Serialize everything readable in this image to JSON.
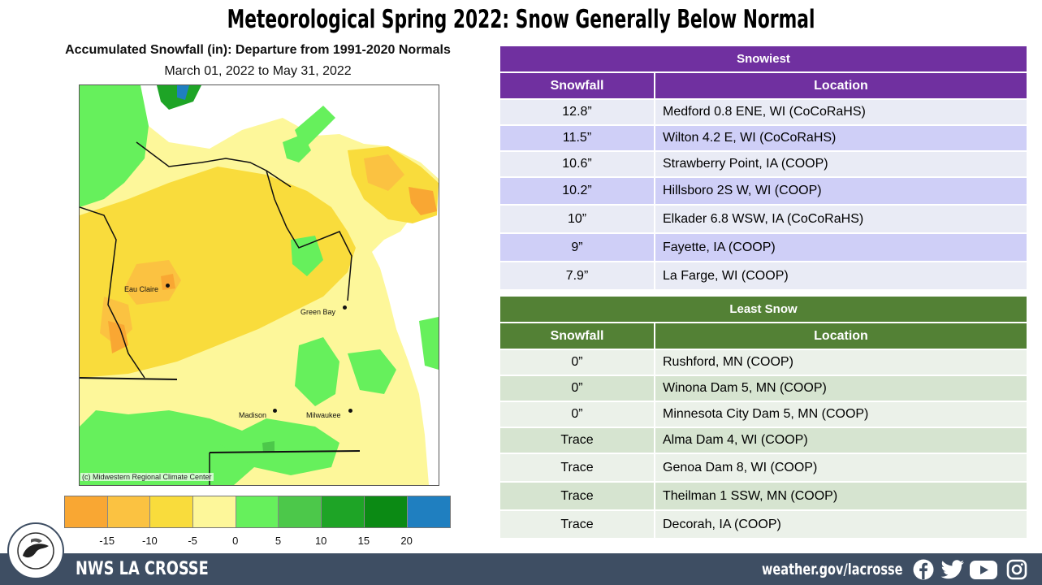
{
  "slide_title": "Meteorological Spring 2022:  Snow Generally Below Normal",
  "map": {
    "title": "Accumulated Snowfall (in): Departure from 1991-2020 Normals",
    "subtitle": "March 01, 2022 to May 31, 2022",
    "credit": "(c) Midwestern Regional Climate Center",
    "cities": [
      {
        "name": "Eau Claire"
      },
      {
        "name": "Green Bay"
      },
      {
        "name": "Madison"
      },
      {
        "name": "Milwaukee"
      }
    ]
  },
  "legend": {
    "colors": [
      "#f9a733",
      "#fbc241",
      "#f9dc3c",
      "#fdf79a",
      "#66f05c",
      "#4cc84a",
      "#1ea426",
      "#0b8a14",
      "#1f7fc0"
    ],
    "labels": [
      "-15",
      "-10",
      "-5",
      "0",
      "5",
      "10",
      "15",
      "20"
    ]
  },
  "snowiest": {
    "title": "Snowiest",
    "col_snowfall": "Snowfall",
    "col_location": "Location",
    "header_color": "#7030a0",
    "rows": [
      {
        "snowfall": "12.8”",
        "location": "Medford 0.8 ENE, WI (CoCoRaHS)"
      },
      {
        "snowfall": "11.5”",
        "location": "Wilton 4.2 E, WI (CoCoRaHS)"
      },
      {
        "snowfall": "10.6”",
        "location": "Strawberry Point, IA (COOP)"
      },
      {
        "snowfall": "10.2”",
        "location": "Hillsboro 2S W, WI (COOP)"
      },
      {
        "snowfall": "10”",
        "location": "Elkader 6.8 WSW, IA (CoCoRaHS)"
      },
      {
        "snowfall": "9”",
        "location": "Fayette, IA (COOP)"
      },
      {
        "snowfall": "7.9”",
        "location": "La Farge, WI (COOP)"
      }
    ]
  },
  "least_snow": {
    "title": "Least Snow",
    "col_snowfall": "Snowfall",
    "col_location": "Location",
    "header_color": "#538135",
    "rows": [
      {
        "snowfall": "0”",
        "location": "Rushford, MN (COOP)"
      },
      {
        "snowfall": "0”",
        "location": "Winona Dam 5, MN (COOP)"
      },
      {
        "snowfall": "0”",
        "location": "Minnesota City Dam 5, MN (COOP)"
      },
      {
        "snowfall": "Trace",
        "location": "Alma Dam 4, WI (COOP)"
      },
      {
        "snowfall": "Trace",
        "location": "Genoa Dam 8, WI (COOP)"
      },
      {
        "snowfall": "Trace",
        "location": "Theilman 1 SSW, MN (COOP)"
      },
      {
        "snowfall": "Trace",
        "location": "Decorah, IA (COOP)"
      }
    ]
  },
  "footer": {
    "office": "NWS LA CROSSE",
    "url": "weather.gov/lacrosse",
    "logo_top": "NATIONAL WEATHER SERVICE",
    "logo_bottom": "LA CROSSE, WI",
    "icons": [
      "facebook-icon",
      "twitter-icon",
      "youtube-icon",
      "instagram-icon"
    ]
  }
}
